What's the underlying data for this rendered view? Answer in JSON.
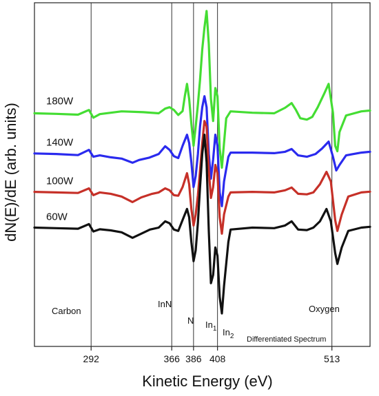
{
  "chart_data": {
    "type": "line",
    "xlabel": "Kinetic Energy (eV)",
    "ylabel": "dN(E)/dE (arb. units)",
    "xlim": [
      240,
      548
    ],
    "x_ticks": [
      292,
      366,
      386,
      408,
      513
    ],
    "x_tick_labels": [
      "292",
      "366",
      "386",
      "408",
      "513"
    ],
    "reference_lines_x": [
      292,
      366,
      386,
      408,
      513
    ],
    "grid": false,
    "legend": "none",
    "annotations": {
      "carbon": "Carbon",
      "inn": "InN",
      "n": "N",
      "in1_base": "In",
      "in1_sub": "1",
      "in2_base": "In",
      "in2_sub": "2",
      "oxygen": "Oxygen",
      "differentiated": "Differentiated Spectrum"
    },
    "series": [
      {
        "name": "180W",
        "color": "#44dd33",
        "baseline": 55,
        "points": [
          [
            240,
            54.8
          ],
          [
            260,
            54.6
          ],
          [
            280,
            54.3
          ],
          [
            290,
            56
          ],
          [
            294,
            53.2
          ],
          [
            300,
            54.5
          ],
          [
            320,
            55.5
          ],
          [
            340,
            55.2
          ],
          [
            354,
            54.8
          ],
          [
            360,
            56.5
          ],
          [
            364,
            57
          ],
          [
            368,
            56
          ],
          [
            372,
            54.2
          ],
          [
            376,
            55.6
          ],
          [
            378,
            61
          ],
          [
            380,
            65.5
          ],
          [
            382,
            60
          ],
          [
            384,
            51
          ],
          [
            386,
            43
          ],
          [
            388,
            50
          ],
          [
            390,
            58
          ],
          [
            392,
            67
          ],
          [
            394,
            78
          ],
          [
            396,
            86
          ],
          [
            398,
            92
          ],
          [
            400,
            80
          ],
          [
            402,
            60
          ],
          [
            404,
            52
          ],
          [
            406,
            64
          ],
          [
            408,
            61
          ],
          [
            410,
            42
          ],
          [
            412,
            35
          ],
          [
            414,
            44
          ],
          [
            416,
            53
          ],
          [
            420,
            55.5
          ],
          [
            440,
            55
          ],
          [
            460,
            54.8
          ],
          [
            470,
            56.8
          ],
          [
            476,
            58.5
          ],
          [
            480,
            56
          ],
          [
            484,
            53
          ],
          [
            490,
            52.5
          ],
          [
            495,
            53.5
          ],
          [
            500,
            57
          ],
          [
            506,
            62
          ],
          [
            510,
            65.5
          ],
          [
            514,
            55
          ],
          [
            516,
            43
          ],
          [
            518,
            41
          ],
          [
            520,
            48
          ],
          [
            526,
            54
          ],
          [
            540,
            55.5
          ],
          [
            548,
            55.8
          ]
        ]
      },
      {
        "name": "140W",
        "color": "#2a2aee",
        "baseline": 40,
        "points": [
          [
            240,
            40.2
          ],
          [
            260,
            40
          ],
          [
            280,
            39.6
          ],
          [
            290,
            41.5
          ],
          [
            294,
            39
          ],
          [
            300,
            39.5
          ],
          [
            310,
            38.8
          ],
          [
            320,
            38.3
          ],
          [
            330,
            36.8
          ],
          [
            336,
            37.8
          ],
          [
            345,
            38.6
          ],
          [
            354,
            40
          ],
          [
            360,
            42.8
          ],
          [
            364,
            41.5
          ],
          [
            368,
            39.2
          ],
          [
            372,
            38.5
          ],
          [
            376,
            43
          ],
          [
            380,
            47
          ],
          [
            382,
            44
          ],
          [
            384,
            37
          ],
          [
            386,
            28
          ],
          [
            388,
            32
          ],
          [
            390,
            40
          ],
          [
            392,
            50
          ],
          [
            394,
            57
          ],
          [
            396,
            61
          ],
          [
            398,
            57
          ],
          [
            400,
            40
          ],
          [
            402,
            31
          ],
          [
            404,
            38
          ],
          [
            406,
            47
          ],
          [
            408,
            43
          ],
          [
            410,
            26
          ],
          [
            412,
            21
          ],
          [
            414,
            30
          ],
          [
            418,
            39
          ],
          [
            420,
            40.5
          ],
          [
            440,
            40.5
          ],
          [
            460,
            40.3
          ],
          [
            470,
            40.8
          ],
          [
            476,
            41.8
          ],
          [
            482,
            39.5
          ],
          [
            490,
            39
          ],
          [
            498,
            40
          ],
          [
            504,
            42
          ],
          [
            510,
            44.5
          ],
          [
            514,
            39
          ],
          [
            517,
            34
          ],
          [
            520,
            36
          ],
          [
            526,
            39.5
          ],
          [
            540,
            40.5
          ],
          [
            548,
            40.8
          ]
        ]
      },
      {
        "name": "100W",
        "color": "#c63028",
        "baseline": 26,
        "points": [
          [
            240,
            26.2
          ],
          [
            260,
            26
          ],
          [
            280,
            25.8
          ],
          [
            290,
            27.5
          ],
          [
            294,
            25
          ],
          [
            300,
            26
          ],
          [
            310,
            25.5
          ],
          [
            320,
            24.5
          ],
          [
            330,
            22.5
          ],
          [
            338,
            24.2
          ],
          [
            348,
            25.5
          ],
          [
            354,
            26
          ],
          [
            360,
            27.5
          ],
          [
            364,
            26.8
          ],
          [
            368,
            25
          ],
          [
            372,
            24.8
          ],
          [
            376,
            28
          ],
          [
            380,
            33
          ],
          [
            382,
            29
          ],
          [
            384,
            20
          ],
          [
            386,
            14
          ],
          [
            388,
            18
          ],
          [
            390,
            25
          ],
          [
            392,
            34
          ],
          [
            394,
            44
          ],
          [
            396,
            52
          ],
          [
            398,
            50
          ],
          [
            400,
            34
          ],
          [
            402,
            24
          ],
          [
            404,
            28
          ],
          [
            406,
            36
          ],
          [
            408,
            33
          ],
          [
            410,
            17
          ],
          [
            412,
            11
          ],
          [
            414,
            18
          ],
          [
            418,
            24.5
          ],
          [
            420,
            26
          ],
          [
            440,
            26.2
          ],
          [
            460,
            26
          ],
          [
            470,
            26.8
          ],
          [
            476,
            27.8
          ],
          [
            482,
            25.5
          ],
          [
            490,
            25.3
          ],
          [
            496,
            26
          ],
          [
            502,
            29
          ],
          [
            508,
            33.5
          ],
          [
            512,
            30
          ],
          [
            516,
            16
          ],
          [
            518,
            12
          ],
          [
            522,
            18
          ],
          [
            528,
            24.5
          ],
          [
            540,
            26
          ],
          [
            548,
            26.3
          ]
        ]
      },
      {
        "name": "60W",
        "color": "#111111",
        "baseline": 13,
        "points": [
          [
            240,
            13.2
          ],
          [
            260,
            13
          ],
          [
            280,
            12.8
          ],
          [
            290,
            14.5
          ],
          [
            294,
            11.8
          ],
          [
            300,
            12.6
          ],
          [
            310,
            12.2
          ],
          [
            320,
            11.5
          ],
          [
            330,
            9.5
          ],
          [
            338,
            11
          ],
          [
            346,
            12.5
          ],
          [
            354,
            13.2
          ],
          [
            360,
            15.5
          ],
          [
            364,
            14.8
          ],
          [
            368,
            12.5
          ],
          [
            372,
            12
          ],
          [
            376,
            16
          ],
          [
            380,
            20
          ],
          [
            382,
            17
          ],
          [
            384,
            8
          ],
          [
            386,
            1
          ],
          [
            388,
            5
          ],
          [
            390,
            15
          ],
          [
            392,
            28
          ],
          [
            394,
            40
          ],
          [
            396,
            47
          ],
          [
            398,
            37
          ],
          [
            400,
            12
          ],
          [
            402,
            -7
          ],
          [
            404,
            -4
          ],
          [
            406,
            6
          ],
          [
            408,
            3
          ],
          [
            410,
            -12
          ],
          [
            412,
            -18
          ],
          [
            414,
            -8
          ],
          [
            418,
            8
          ],
          [
            420,
            12.5
          ],
          [
            440,
            13.2
          ],
          [
            460,
            13
          ],
          [
            470,
            14
          ],
          [
            476,
            15.5
          ],
          [
            482,
            12.5
          ],
          [
            490,
            12.3
          ],
          [
            496,
            13.2
          ],
          [
            502,
            15.5
          ],
          [
            508,
            20
          ],
          [
            512,
            15.5
          ],
          [
            516,
            4
          ],
          [
            518,
            0
          ],
          [
            522,
            6
          ],
          [
            528,
            12
          ],
          [
            540,
            13.2
          ],
          [
            548,
            13.5
          ]
        ]
      }
    ]
  }
}
